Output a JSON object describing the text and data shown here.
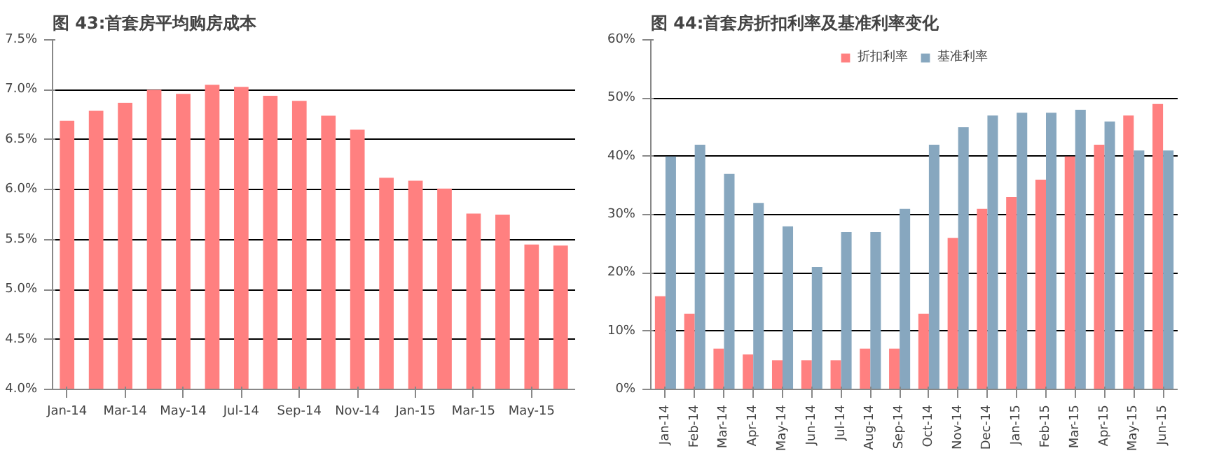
{
  "chart_data": [
    {
      "type": "bar",
      "title": "图 43:首套房平均购房成本",
      "categories": [
        "Jan-14",
        null,
        "Mar-14",
        null,
        "May-14",
        null,
        "Jul-14",
        null,
        "Sep-14",
        null,
        "Nov-14",
        null,
        "Jan-15",
        null,
        "Mar-15",
        null,
        "May-15",
        null
      ],
      "series": [
        {
          "color": "#ff8080",
          "values": [
            6.69,
            6.79,
            6.87,
            7.0,
            6.96,
            7.05,
            7.03,
            6.94,
            6.89,
            6.74,
            6.6,
            6.12,
            6.09,
            6.01,
            5.76,
            5.75,
            5.45,
            5.44
          ]
        }
      ],
      "ylim": [
        4.0,
        7.5
      ],
      "yticks": [
        {
          "value": 4.0,
          "label": "4.0%"
        },
        {
          "value": 4.5,
          "label": "4.5%"
        },
        {
          "value": 5.0,
          "label": "5.0%"
        },
        {
          "value": 5.5,
          "label": "5.5%"
        },
        {
          "value": 6.0,
          "label": "6.0%"
        },
        {
          "value": 6.5,
          "label": "6.5%"
        },
        {
          "value": 7.0,
          "label": "7.0%"
        },
        {
          "value": 7.5,
          "label": "7.5%"
        }
      ],
      "grid": "y"
    },
    {
      "type": "bar",
      "title": "图 44:首套房折扣利率及基准利率变化",
      "categories": [
        "Jan-14",
        "Feb-14",
        "Mar-14",
        "Apr-14",
        "May-14",
        "Jun-14",
        "Jul-14",
        "Aug-14",
        "Sep-14",
        "Oct-14",
        "Nov-14",
        "Dec-14",
        "Jan-15",
        "Feb-15",
        "Mar-15",
        "Apr-15",
        "May-15",
        "Jun-15"
      ],
      "series": [
        {
          "name": "折扣利率",
          "color": "#ff8080",
          "values": [
            16,
            13,
            7,
            6,
            5,
            5,
            5,
            7,
            7,
            13,
            26,
            31,
            33,
            36,
            40,
            42,
            47,
            49
          ]
        },
        {
          "name": "基准利率",
          "color": "#87a7bf",
          "values": [
            40,
            42,
            37,
            32,
            28,
            21,
            27,
            27,
            31,
            42,
            45,
            47,
            47.5,
            47.5,
            48,
            46,
            41,
            41
          ]
        }
      ],
      "ylim": [
        0,
        60
      ],
      "yticks": [
        {
          "value": 0,
          "label": "0%"
        },
        {
          "value": 10,
          "label": "10%"
        },
        {
          "value": 20,
          "label": "20%"
        },
        {
          "value": 30,
          "label": "30%"
        },
        {
          "value": 40,
          "label": "40%"
        },
        {
          "value": 50,
          "label": "50%"
        },
        {
          "value": 60,
          "label": "60%"
        }
      ],
      "grid": "y",
      "legend": "top"
    }
  ]
}
